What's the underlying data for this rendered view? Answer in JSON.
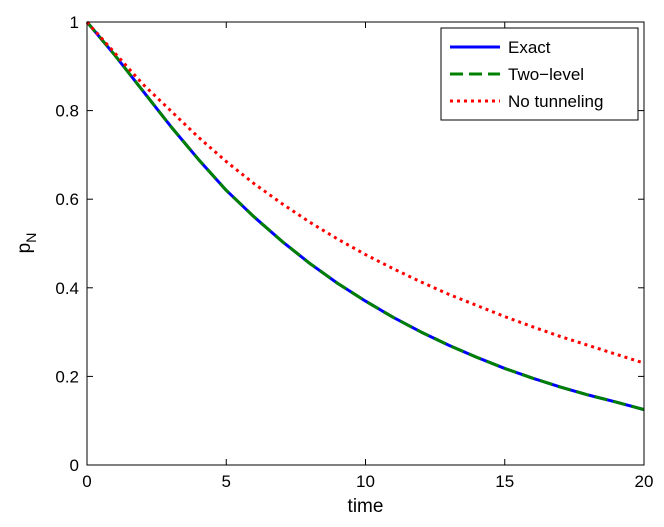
{
  "chart_data": {
    "type": "line",
    "xlabel": "time",
    "ylabel": "p",
    "ylabel_subscript": "N",
    "xlim": [
      0,
      20
    ],
    "ylim": [
      0,
      1
    ],
    "xticks": [
      0,
      5,
      10,
      15,
      20
    ],
    "yticks": [
      0,
      0.2,
      0.4,
      0.6,
      0.8,
      1
    ],
    "xtick_labels": [
      "0",
      "5",
      "10",
      "15",
      "20"
    ],
    "ytick_labels": [
      "0",
      "0.2",
      "0.4",
      "0.6",
      "0.8",
      "1"
    ],
    "grid": false,
    "legend_position": "top-right",
    "series": [
      {
        "name": "Exact",
        "color": "#0000ff",
        "style": "solid",
        "x": [
          0,
          1,
          2,
          3,
          4,
          5,
          6,
          7,
          8,
          9,
          10,
          11,
          12,
          13,
          14,
          15,
          16,
          17,
          18,
          19,
          20
        ],
        "y": [
          1.0,
          0.925,
          0.845,
          0.765,
          0.69,
          0.62,
          0.56,
          0.505,
          0.455,
          0.41,
          0.37,
          0.333,
          0.3,
          0.27,
          0.243,
          0.218,
          0.196,
          0.176,
          0.158,
          0.142,
          0.125
        ]
      },
      {
        "name": "Two−level",
        "color": "#008000",
        "style": "dashed",
        "x": [
          0,
          1,
          2,
          3,
          4,
          5,
          6,
          7,
          8,
          9,
          10,
          11,
          12,
          13,
          14,
          15,
          16,
          17,
          18,
          19,
          20
        ],
        "y": [
          1.0,
          0.925,
          0.845,
          0.765,
          0.69,
          0.62,
          0.56,
          0.505,
          0.455,
          0.41,
          0.37,
          0.333,
          0.3,
          0.27,
          0.243,
          0.218,
          0.196,
          0.176,
          0.158,
          0.142,
          0.125
        ]
      },
      {
        "name": "No tunneling",
        "color": "#ff0000",
        "style": "dotted",
        "x": [
          0,
          1,
          2,
          3,
          4,
          5,
          6,
          7,
          8,
          9,
          10,
          11,
          12,
          13,
          14,
          15,
          16,
          17,
          18,
          19,
          20
        ],
        "y": [
          1.0,
          0.93,
          0.86,
          0.8,
          0.74,
          0.685,
          0.635,
          0.59,
          0.548,
          0.51,
          0.475,
          0.443,
          0.413,
          0.385,
          0.36,
          0.335,
          0.312,
          0.29,
          0.27,
          0.25,
          0.23
        ]
      }
    ]
  }
}
